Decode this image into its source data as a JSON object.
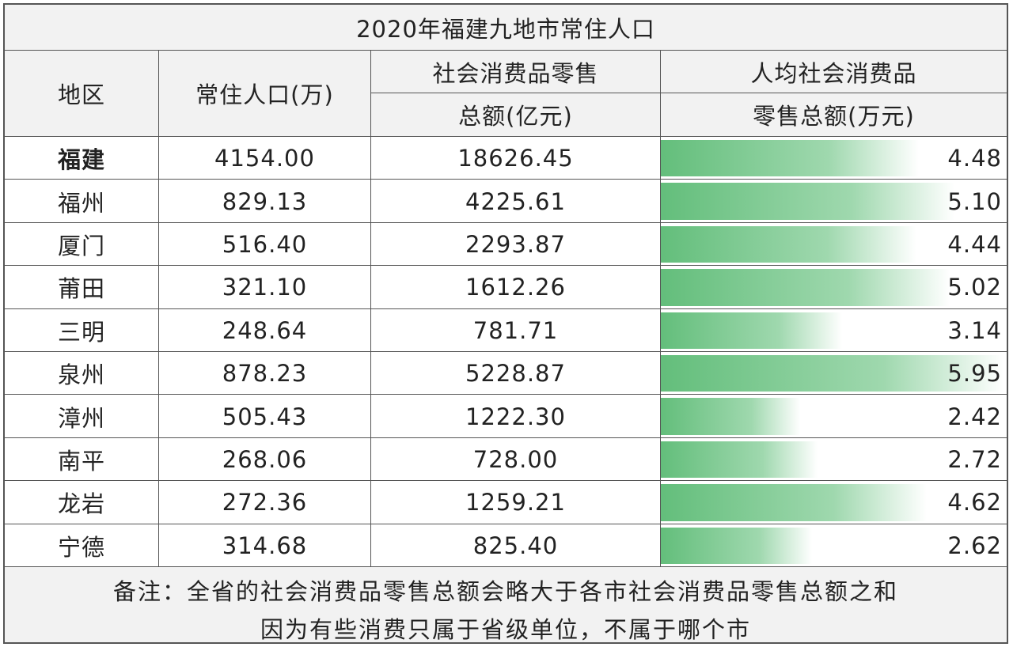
{
  "chart_data": {
    "type": "table",
    "title": "2020年福建九地市常住人口",
    "columns": {
      "region": "地区",
      "population": "常住人口(万)",
      "retail_line1": "社会消费品零售",
      "retail_line2": "总额(亿元)",
      "percap_line1": "人均社会消费品",
      "percap_line2": "零售总额(万元)"
    },
    "rows": [
      {
        "region": "福建",
        "population": "4154.00",
        "retail": "18626.45",
        "per_capita": 4.48,
        "per_capita_label": "4.48"
      },
      {
        "region": "福州",
        "population": "829.13",
        "retail": "4225.61",
        "per_capita": 5.1,
        "per_capita_label": "5.10"
      },
      {
        "region": "厦门",
        "population": "516.40",
        "retail": "2293.87",
        "per_capita": 4.44,
        "per_capita_label": "4.44"
      },
      {
        "region": "莆田",
        "population": "321.10",
        "retail": "1612.26",
        "per_capita": 5.02,
        "per_capita_label": "5.02"
      },
      {
        "region": "三明",
        "population": "248.64",
        "retail": "781.71",
        "per_capita": 3.14,
        "per_capita_label": "3.14"
      },
      {
        "region": "泉州",
        "population": "878.23",
        "retail": "5228.87",
        "per_capita": 5.95,
        "per_capita_label": "5.95"
      },
      {
        "region": "漳州",
        "population": "505.43",
        "retail": "1222.30",
        "per_capita": 2.42,
        "per_capita_label": "2.42"
      },
      {
        "region": "南平",
        "population": "268.06",
        "retail": "728.00",
        "per_capita": 2.72,
        "per_capita_label": "2.72"
      },
      {
        "region": "龙岩",
        "population": "272.36",
        "retail": "1259.21",
        "per_capita": 4.62,
        "per_capita_label": "4.62"
      },
      {
        "region": "宁德",
        "population": "314.68",
        "retail": "825.40",
        "per_capita": 2.62,
        "per_capita_label": "2.62"
      }
    ],
    "bar_color": "#63be7b",
    "note_line1": "备注：全省的社会消费品零售总额会略大于各市社会消费品零售总额之和",
    "note_line2": "因为有些消费只属于省级单位，不属于哪个市"
  }
}
